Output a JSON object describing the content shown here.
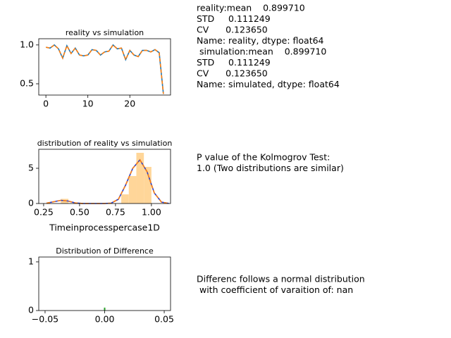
{
  "chart_data": [
    {
      "type": "line",
      "title": "reality vs simulation",
      "x": [
        0,
        1,
        2,
        3,
        4,
        5,
        6,
        7,
        8,
        9,
        10,
        11,
        12,
        13,
        14,
        15,
        16,
        17,
        18,
        19,
        20,
        21,
        22,
        23,
        24,
        25,
        26,
        27,
        28
      ],
      "series": [
        {
          "color": "#1f77b4",
          "linestyle": "solid",
          "values": [
            0.97,
            0.96,
            1.0,
            0.95,
            0.83,
            0.99,
            0.89,
            0.96,
            0.87,
            0.86,
            0.87,
            0.94,
            0.93,
            0.87,
            0.91,
            0.92,
            1.0,
            0.95,
            0.96,
            0.81,
            0.93,
            0.87,
            0.85,
            0.93,
            0.93,
            0.91,
            0.94,
            0.9,
            0.37
          ]
        },
        {
          "color": "#ff7f0e",
          "linestyle": "dashed",
          "values": [
            0.97,
            0.96,
            1.0,
            0.95,
            0.83,
            0.99,
            0.89,
            0.96,
            0.87,
            0.86,
            0.87,
            0.94,
            0.93,
            0.87,
            0.91,
            0.92,
            1.0,
            0.95,
            0.96,
            0.81,
            0.93,
            0.87,
            0.85,
            0.93,
            0.93,
            0.91,
            0.94,
            0.9,
            0.37
          ]
        }
      ],
      "xlim": [
        -1.7,
        29.7
      ],
      "xticks": [
        0,
        10,
        20
      ],
      "ylim": [
        0.355,
        1.08
      ],
      "yticks": [
        {
          "value": 0.5,
          "label": "0.5"
        },
        {
          "value": 1,
          "label": "1.0"
        }
      ]
    },
    {
      "type": "histogram",
      "title": "distribution of reality vs simulation",
      "x_label": "Timeinprocesspercase1D",
      "bins": [
        0.37,
        0.4225,
        0.475,
        0.5275,
        0.58,
        0.6325,
        0.685,
        0.7375,
        0.79,
        0.8425,
        0.895,
        0.9475,
        1.0
      ],
      "values": [
        0.66,
        0,
        0,
        0,
        0,
        0,
        0,
        0,
        1.3,
        3.9,
        7.2,
        5.2
      ],
      "color": "#ffd699",
      "series": [
        {
          "color": "#2c3ec9",
          "linestyle": "solid",
          "x": [
            0.27,
            0.32,
            0.37,
            0.42,
            0.47,
            0.52,
            0.57,
            0.62,
            0.67,
            0.72,
            0.77,
            0.82,
            0.87,
            0.92,
            0.97,
            1.02,
            1.07,
            1.12
          ],
          "values": [
            0.05,
            0.25,
            0.45,
            0.35,
            0.08,
            0.01,
            0,
            0,
            0,
            0.05,
            0.6,
            2.6,
            5.0,
            6.2,
            4.5,
            1.5,
            0.2,
            0.02
          ]
        },
        {
          "color": "#ff7f0e",
          "linestyle": "dashed",
          "x": [
            0.27,
            0.32,
            0.37,
            0.42,
            0.47,
            0.52,
            0.57,
            0.62,
            0.67,
            0.72,
            0.77,
            0.82,
            0.87,
            0.92,
            0.97,
            1.02,
            1.07,
            1.12
          ],
          "values": [
            0.05,
            0.25,
            0.45,
            0.35,
            0.08,
            0.01,
            0,
            0,
            0,
            0.05,
            0.6,
            2.6,
            5.0,
            6.2,
            4.5,
            1.5,
            0.2,
            0.02
          ]
        }
      ],
      "xlim": [
        0.216,
        1.133
      ],
      "xticks": [
        0.25,
        {
          "value": 0.5,
          "label": "0.50"
        },
        0.75,
        {
          "value": 1,
          "label": "1.00"
        }
      ],
      "ylim": [
        0,
        7.7
      ],
      "yticks": [
        0,
        5
      ]
    },
    {
      "type": "histogram",
      "title": "Distribution of Difference",
      "bins": [
        -0.0006,
        0.0006
      ],
      "values": [
        0.06
      ],
      "color": "#2ca02c",
      "xlim": [
        -0.0553,
        0.0553
      ],
      "xticks": [
        {
          "value": -0.05,
          "label": "−0.05"
        },
        {
          "value": 0,
          "label": "0.00"
        },
        {
          "value": 0.05,
          "label": "0.05"
        }
      ],
      "ylim": [
        0,
        1.1
      ],
      "yticks": [
        0,
        1
      ]
    }
  ],
  "stats_text": [
    "reality:mean    0.899710",
    "STD     0.111249",
    "CV      0.123650",
    "Name: reality, dtype: float64",
    " simulation:mean    0.899710",
    "STD     0.111249",
    "CV      0.123650",
    "Name: simulated, dtype: float64"
  ],
  "ks_text": [
    "P value of the Kolmogrov Test:",
    "1.0 (Two distributions are similar)"
  ],
  "diff_text": [
    "Differenc follows a normal distribution",
    " with coefficient of varaition of: nan"
  ]
}
